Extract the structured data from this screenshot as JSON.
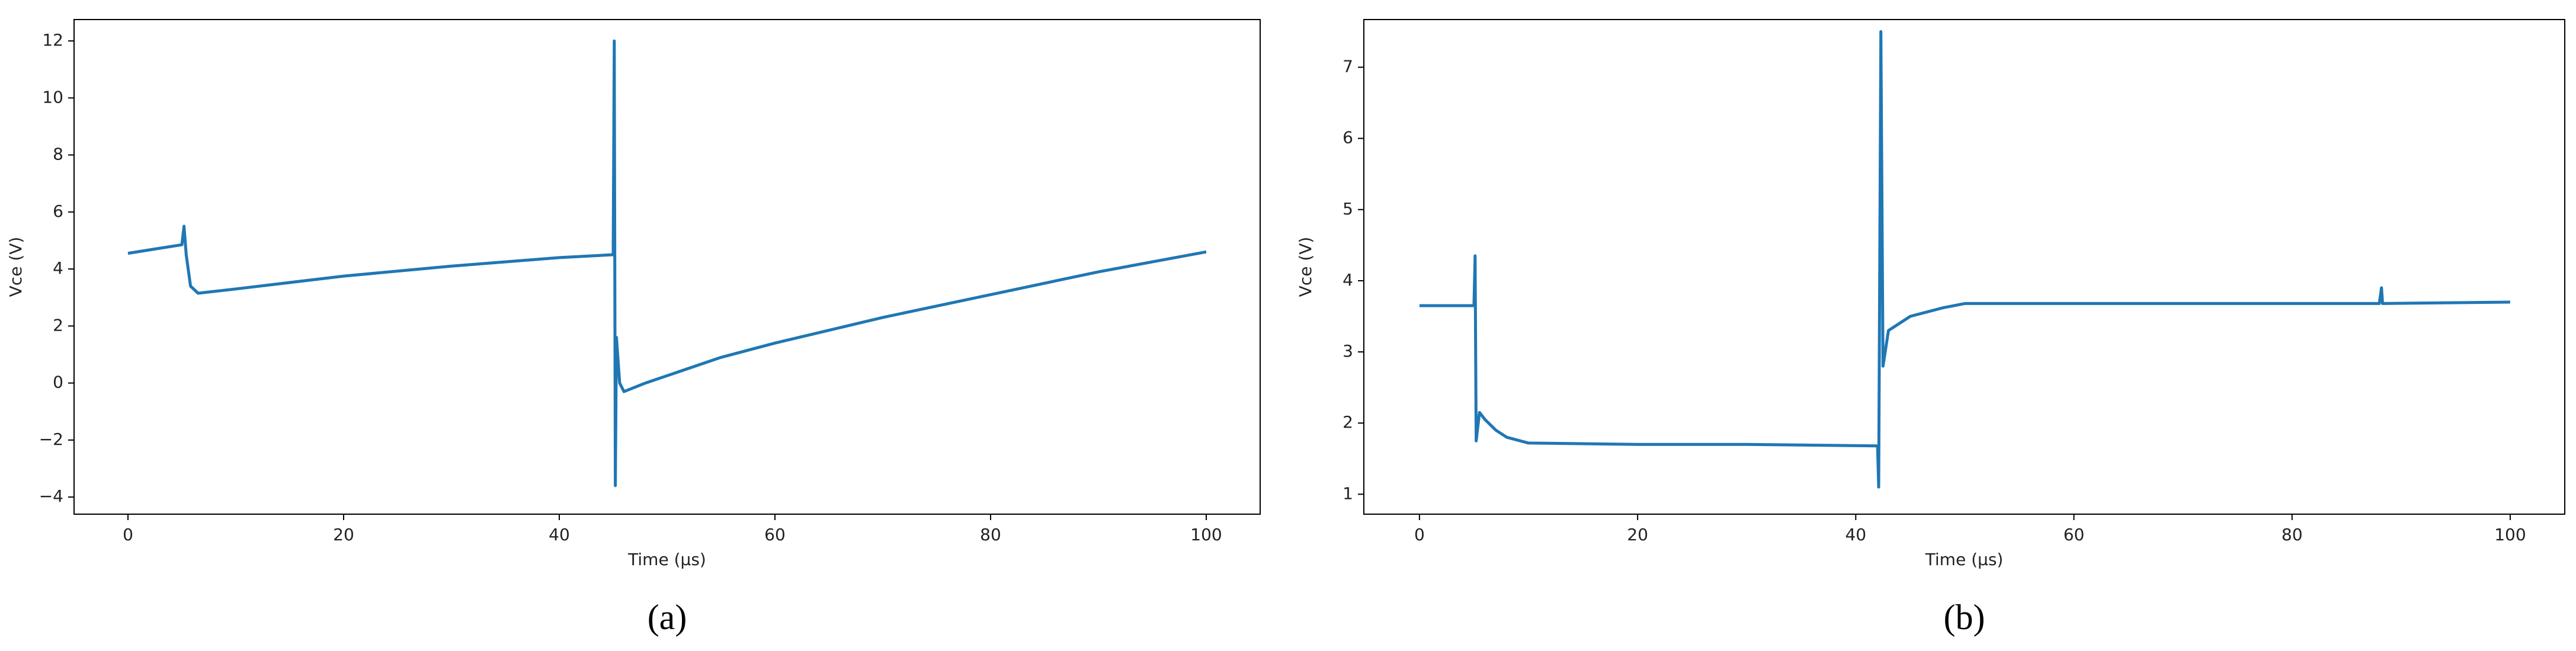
{
  "chart_data": [
    {
      "type": "line",
      "caption": "(a)",
      "xlabel": "Time (µs)",
      "ylabel": "Vce (V)",
      "color": "#1f77b4",
      "xlim": [
        -5,
        105
      ],
      "ylim": [
        -4.6,
        12.75
      ],
      "xticks": [
        0,
        20,
        40,
        60,
        80,
        100
      ],
      "yticks": [
        {
          "value": -4,
          "label": "−4"
        },
        {
          "value": -2,
          "label": "−2"
        },
        0,
        2,
        4,
        6,
        8,
        10,
        12
      ],
      "x": [
        0,
        5,
        5.2,
        5.4,
        5.8,
        6.5,
        10,
        20,
        30,
        40,
        45,
        45.1,
        45.2,
        45.3,
        45.6,
        46,
        48,
        55,
        60,
        70,
        80,
        90,
        100
      ],
      "values": [
        4.55,
        4.85,
        5.5,
        4.5,
        3.4,
        3.15,
        3.3,
        3.75,
        4.1,
        4.4,
        4.5,
        12,
        -3.6,
        1.6,
        0,
        -0.3,
        0,
        0.9,
        1.4,
        2.3,
        3.1,
        3.9,
        4.6
      ]
    },
    {
      "type": "line",
      "caption": "(b)",
      "xlabel": "Time (µs)",
      "ylabel": "Vce (V)",
      "color": "#1f77b4",
      "xlim": [
        -5.1,
        105
      ],
      "ylim": [
        0.72,
        7.67
      ],
      "xticks": [
        0,
        20,
        40,
        60,
        80,
        100
      ],
      "yticks": [
        1,
        2,
        3,
        4,
        5,
        6,
        7
      ],
      "x": [
        0,
        5,
        5.1,
        5.2,
        5.5,
        6,
        7,
        8,
        10,
        20,
        30,
        42,
        42.1,
        42.3,
        42.5,
        43,
        45,
        48,
        50,
        60,
        88,
        88.2,
        88.3,
        100
      ],
      "values": [
        3.65,
        3.65,
        4.35,
        1.75,
        2.15,
        2.05,
        1.9,
        1.8,
        1.72,
        1.7,
        1.7,
        1.68,
        1.1,
        7.5,
        2.8,
        3.3,
        3.5,
        3.62,
        3.68,
        3.68,
        3.68,
        3.9,
        3.68,
        3.7
      ]
    }
  ]
}
